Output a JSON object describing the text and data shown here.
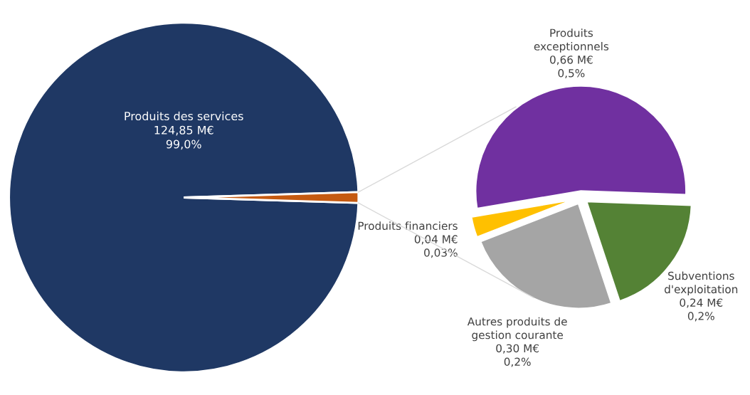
{
  "chart_data": [
    {
      "type": "pie",
      "categories": [
        "Produits des services",
        null
      ],
      "values": [
        124.85,
        1.24
      ],
      "colors": [
        "#1f3864",
        "#c55a11"
      ],
      "value_labels": [
        "124,85 M€\n99,0%",
        null
      ]
    },
    {
      "type": "pie",
      "categories": [
        "Produits exceptionnels",
        "Produits financiers",
        "Autres produits de gestion courante",
        "Subventions d'exploitation"
      ],
      "values": [
        0.66,
        0.04,
        0.3,
        0.24
      ],
      "colors": [
        "#7030a0",
        "#ffc000",
        "#a5a5a5",
        "#548235"
      ],
      "value_labels": [
        "0,66 M€\n0,5%",
        "0,04 M€\n0,03%",
        "0,30 M€\n0,2%",
        "0,24 M€\n0,2%"
      ]
    }
  ]
}
